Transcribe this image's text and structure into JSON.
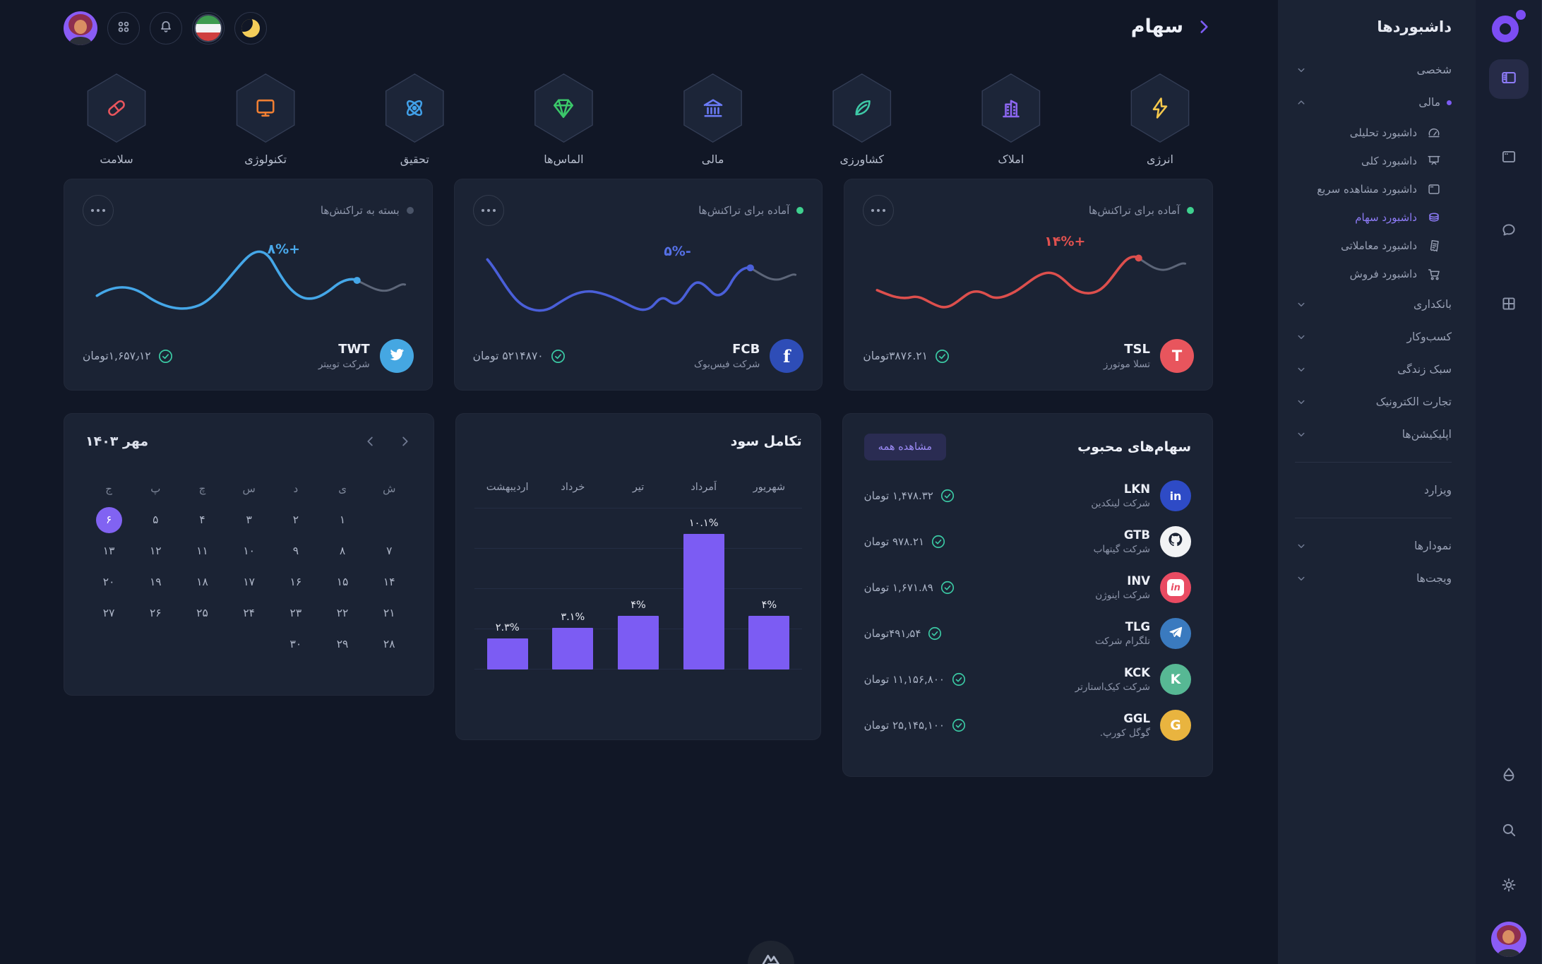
{
  "header": {
    "title": "سهام"
  },
  "topbar": {
    "icons": [
      "avatar",
      "apps-icon",
      "notifications-bell-icon",
      "language-flag-icon",
      "dark-mode-moon-icon"
    ]
  },
  "theme": {
    "accent": "#7c5cf3",
    "green": "#3fd08f",
    "red": "#e0514f",
    "card_bg": "#1b2334",
    "page_bg": "#111726"
  },
  "sectors": [
    {
      "label": "انرژی",
      "icon": "bolt-icon",
      "color": "#f5c84c"
    },
    {
      "label": "املاک",
      "icon": "building-icon",
      "color": "#8c66f0"
    },
    {
      "label": "کشاورزی",
      "icon": "leaf-icon",
      "color": "#3ec9a7"
    },
    {
      "label": "مالی",
      "icon": "bank-icon",
      "color": "#6b7bf7"
    },
    {
      "label": "الماس‌ها",
      "icon": "gem-icon",
      "color": "#3bc76a"
    },
    {
      "label": "تحقیق",
      "icon": "atom-icon",
      "color": "#41a0e8"
    },
    {
      "label": "تکنولوژی",
      "icon": "monitor-icon",
      "color": "#f07f33"
    },
    {
      "label": "سلامت",
      "icon": "pill-icon",
      "color": "#e8555d"
    }
  ],
  "stock_cards": [
    {
      "ticker": "TSL",
      "company": "تسلا موتورز",
      "value": "۳۸۷۶.۲۱تومان",
      "change": "۱۴%+",
      "change_color": "#e0514f",
      "status": "آماده برای تراکنش‌ها",
      "status_color": "#3fd08f",
      "line_color": "#dd4f4d",
      "icon": "tesla-icon",
      "icon_text": "T",
      "icon_bg": "#e8555d",
      "spark": "tsl"
    },
    {
      "ticker": "FCB",
      "company": "شرکت فیس‌بوک",
      "value": "۵۲۱۴۸۷۰ تومان",
      "change": "۵%-",
      "change_color": "#5570e6",
      "status": "آماده برای تراکنش‌ها",
      "status_color": "#3fd08f",
      "line_color": "#4a5fd9",
      "icon": "facebook-icon",
      "icon_text": "f",
      "icon_bg": "#2e4db7",
      "spark": "fcb"
    },
    {
      "ticker": "TWT",
      "company": "شرکت توییتر",
      "value": "۱,۶۵۷٫۱۲تومان",
      "change": "۸%+",
      "change_color": "#49a8ea",
      "status": "بسته به تراکنش‌ها",
      "status_color": "#4a5468",
      "line_color": "#45a7e8",
      "icon": "twitter-icon",
      "icon_text": "",
      "icon_bg": "#45a7e2",
      "spark": "twt"
    }
  ],
  "favorites": {
    "title": "سهام‌های محبوب",
    "view_all": "مشاهده همه",
    "rows": [
      {
        "ticker": "LKN",
        "company": "شرکت لینکدین",
        "value": "۱,۴۷۸.۳۲ تومان",
        "icon": "linkedin-icon",
        "icon_text": "in",
        "icon_bg": "#2e4bc6"
      },
      {
        "ticker": "GTB",
        "company": "شرکت گیتهاب",
        "value": "۹۷۸.۲۱ تومان",
        "icon": "github-icon",
        "icon_text": "",
        "icon_bg": "#f2f3f5"
      },
      {
        "ticker": "INV",
        "company": "شرکت اینوژن",
        "value": "۱,۶۷۱.۸۹ تومان",
        "icon": "invision-icon",
        "icon_text": "in",
        "icon_bg": "#e94b62"
      },
      {
        "ticker": "TLG",
        "company": "تلگرام شرکت",
        "value": "۴۹۱٫۵۴تومان",
        "icon": "telegram-icon",
        "icon_text": "",
        "icon_bg": "#3a7abf"
      },
      {
        "ticker": "KCK",
        "company": "شرکت کیک‌استارتر",
        "value": "۱۱,۱۵۶,۸۰۰ تومان",
        "icon": "kickstarter-icon",
        "icon_text": "K",
        "icon_bg": "#57b894"
      },
      {
        "ticker": "GGL",
        "company": "گوگل کورپ.",
        "value": "۲۵,۱۴۵,۱۰۰ تومان",
        "icon": "google-icon",
        "icon_text": "G",
        "icon_bg": "#e9b43f"
      }
    ]
  },
  "chart_data": {
    "type": "bar",
    "title": "تکامل سود",
    "categories": [
      "اردیبهشت",
      "خرداد",
      "تیر",
      "اَمرداد",
      "شهریور"
    ],
    "values": [
      2.3,
      3.1,
      4,
      10.1,
      4
    ],
    "display_labels": [
      "۲.۳%",
      "۳.۱%",
      "۴%",
      "۱۰.۱%",
      "۴%"
    ],
    "unit": "%",
    "ylim": [
      0,
      12
    ],
    "gridline_step": 3,
    "grid": true,
    "legend": false,
    "bar_color": "#7c5cf3"
  },
  "calendar": {
    "title": "مهر ۱۴۰۳",
    "weekdays": [
      "ش",
      "ی",
      "د",
      "س",
      "چ",
      "پ",
      "ج"
    ],
    "weeks": [
      [
        "",
        "۱",
        "۲",
        "۳",
        "۴",
        "۵",
        "۶"
      ],
      [
        "۷",
        "۸",
        "۹",
        "۱۰",
        "۱۱",
        "۱۲",
        "۱۳"
      ],
      [
        "۱۴",
        "۱۵",
        "۱۶",
        "۱۷",
        "۱۸",
        "۱۹",
        "۲۰"
      ],
      [
        "۲۱",
        "۲۲",
        "۲۳",
        "۲۴",
        "۲۵",
        "۲۶",
        "۲۷"
      ],
      [
        "۲۸",
        "۲۹",
        "۳۰",
        "",
        "",
        "",
        ""
      ]
    ],
    "selected": "۶"
  },
  "sidebar": {
    "title": "داشبوردها",
    "sections": [
      {
        "label": "شخصی",
        "chevron": "down"
      },
      {
        "label": "مالی",
        "chevron": "up",
        "dot": true,
        "children": [
          {
            "label": "داشبورد تحلیلی",
            "icon": "gauge-icon"
          },
          {
            "label": "داشبورد کلی",
            "icon": "board-icon"
          },
          {
            "label": "داشبورد مشاهده سریع",
            "icon": "window-icon"
          },
          {
            "label": "داشبورد سهام",
            "icon": "coins-icon",
            "active": true
          },
          {
            "label": "داشبورد معاملاتی",
            "icon": "receipt-icon"
          },
          {
            "label": "داشبورد فروش",
            "icon": "cart-icon"
          }
        ]
      },
      {
        "label": "بانکداری",
        "chevron": "down"
      },
      {
        "label": "کسب‌وکار",
        "chevron": "down"
      },
      {
        "label": "سبک زندگی",
        "chevron": "down"
      },
      {
        "label": "تجارت الکترونیک",
        "chevron": "down"
      },
      {
        "label": "اپلیکیشن‌ها",
        "chevron": "down"
      },
      {
        "divider": true
      },
      {
        "label": "ویزارد"
      },
      {
        "divider": true
      },
      {
        "label": "نمودارها",
        "chevron": "down"
      },
      {
        "label": "ویجت‌ها",
        "chevron": "down"
      }
    ]
  },
  "rail": {
    "top_icons": [
      "brand-logo",
      "layout-icon",
      "window-icon",
      "chat-icon",
      "grid-icon"
    ],
    "bottom_icons": [
      "droplet-icon",
      "search-icon",
      "settings-gear-icon",
      "avatar"
    ],
    "footer_icon": "mountains-logo-icon"
  }
}
